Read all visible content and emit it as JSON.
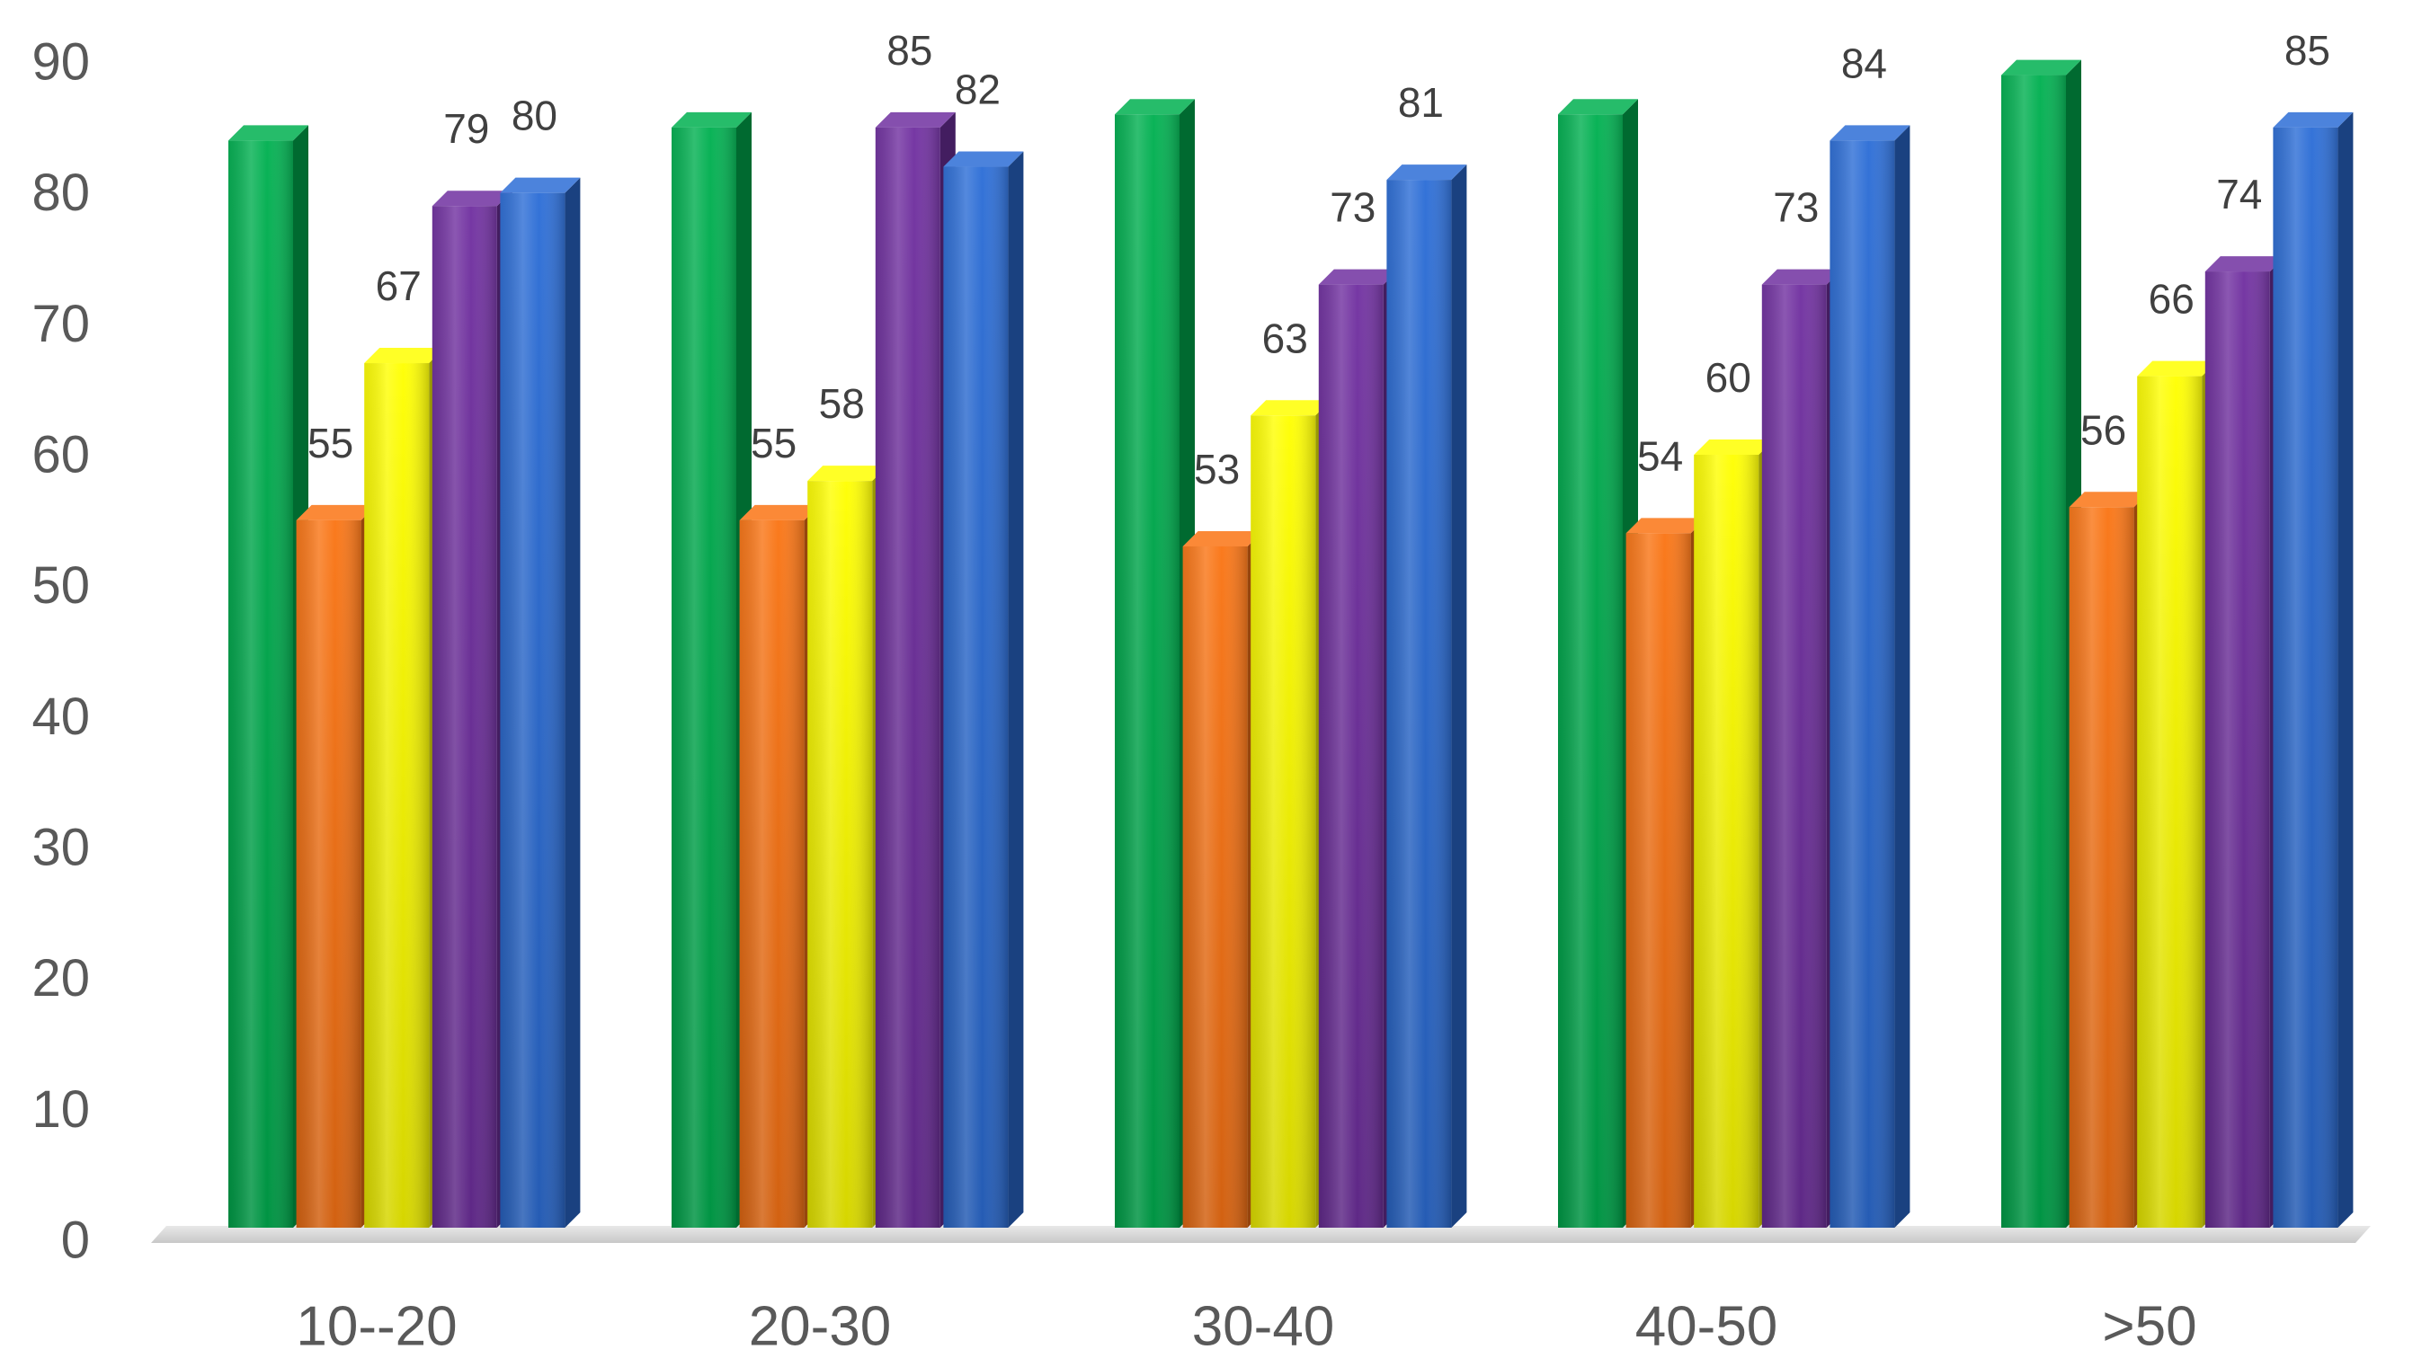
{
  "chart_data": {
    "type": "bar",
    "three_d": true,
    "categories": [
      "10--20",
      "20-30",
      "30-40",
      "40-50",
      ">50"
    ],
    "series": [
      {
        "color": "#00B050",
        "values": [
          84,
          85,
          86,
          86,
          89
        ],
        "data_labels": false
      },
      {
        "color": "#FA7414",
        "values": [
          55,
          55,
          53,
          54,
          56
        ],
        "data_labels": true
      },
      {
        "color": "#FFFF00",
        "values": [
          67,
          58,
          63,
          60,
          66
        ],
        "data_labels": true
      },
      {
        "color": "#7030A0",
        "values": [
          79,
          85,
          73,
          73,
          74
        ],
        "data_labels": true
      },
      {
        "color": "#2C6DD6",
        "values": [
          80,
          82,
          81,
          84,
          85
        ],
        "data_labels": true
      }
    ],
    "ylim": [
      0,
      90
    ],
    "yticks": [
      0,
      10,
      20,
      30,
      40,
      50,
      60,
      70,
      80,
      90
    ],
    "grid": false,
    "legend": false
  }
}
